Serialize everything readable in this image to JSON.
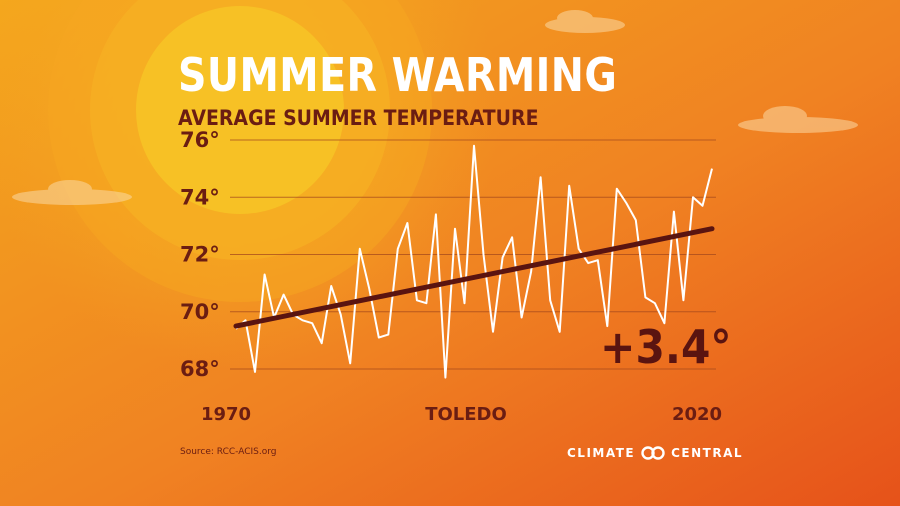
{
  "title": "SUMMER WARMING",
  "subtitle": "AVERAGE SUMMER TEMPERATURE",
  "annotation": "+3.4°",
  "source": "Source: RCC-ACIS.org",
  "brand": {
    "word1": "CLIMATE",
    "word2": "CENTRAL",
    "logo_icon": "linked-rings-icon"
  },
  "colors": {
    "text_dark": "#6b1d12",
    "trend_line": "#5a1410",
    "data_line": "#ffffff",
    "background_top": "#f3a41c",
    "background_bottom": "#e8561a"
  },
  "chart_data": {
    "type": "line",
    "title": "SUMMER WARMING",
    "subtitle": "AVERAGE SUMMER TEMPERATURE",
    "location": "TOLEDO",
    "xlabel": "",
    "ylabel": "",
    "xlim": [
      1970,
      2020
    ],
    "ylim": [
      68,
      76
    ],
    "x_ticks": [
      "1970",
      "2020"
    ],
    "y_ticks": [
      "68°",
      "70°",
      "72°",
      "74°",
      "76°"
    ],
    "grid": "horizontal",
    "x": [
      1970,
      1971,
      1972,
      1973,
      1974,
      1975,
      1976,
      1977,
      1978,
      1979,
      1980,
      1981,
      1982,
      1983,
      1984,
      1985,
      1986,
      1987,
      1988,
      1989,
      1990,
      1991,
      1992,
      1993,
      1994,
      1995,
      1996,
      1997,
      1998,
      1999,
      2000,
      2001,
      2002,
      2003,
      2004,
      2005,
      2006,
      2007,
      2008,
      2009,
      2010,
      2011,
      2012,
      2013,
      2014,
      2015,
      2016,
      2017,
      2018,
      2019,
      2020
    ],
    "series": [
      {
        "values": [
          69.4,
          69.7,
          67.9,
          71.3,
          69.8,
          70.6,
          69.9,
          69.7,
          69.6,
          68.9,
          70.9,
          69.9,
          68.2,
          72.2,
          70.8,
          69.1,
          69.2,
          72.2,
          73.1,
          70.4,
          70.3,
          73.4,
          67.7,
          72.9,
          70.3,
          75.8,
          72.0,
          69.3,
          71.9,
          72.6,
          69.8,
          71.4,
          74.7,
          70.4,
          69.3,
          74.4,
          72.2,
          71.7,
          71.8,
          69.5,
          74.3,
          73.8,
          73.2,
          70.5,
          70.3,
          69.6,
          73.5,
          70.4,
          74.0,
          73.7,
          75.0
        ]
      },
      {
        "type": "trend",
        "values_at_endpoints": [
          69.5,
          72.9
        ]
      }
    ]
  }
}
